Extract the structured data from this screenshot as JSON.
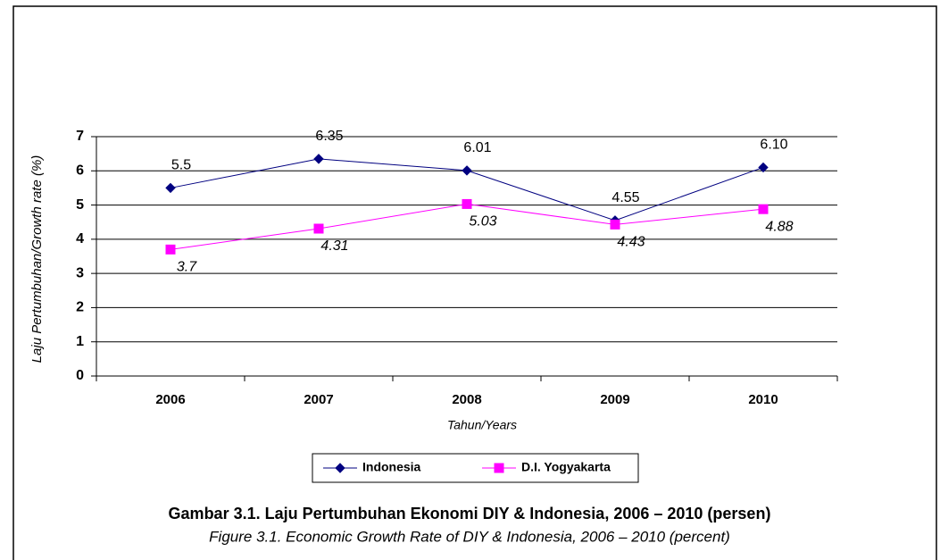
{
  "chart_data": {
    "type": "line",
    "title": "Gambar 3.1. Laju Pertumbuhan Ekonomi DIY & Indonesia, 2006 – 2010 (persen)",
    "subtitle": "Figure 3.1. Economic Growth Rate of DIY & Indonesia, 2006 – 2010 (percent)",
    "x_label": "Tahun/Years",
    "y_label": "Laju Pertumbuhan/Growth rate (%)",
    "categories": [
      "2006",
      "2007",
      "2008",
      "2009",
      "2010"
    ],
    "series": [
      {
        "name": "Indonesia",
        "color": "#000080",
        "marker": "diamond",
        "values": [
          5.5,
          6.35,
          6.01,
          4.55,
          6.1
        ],
        "value_labels": [
          "5.5",
          "6.35",
          "6.01",
          "4.55",
          "6.10"
        ]
      },
      {
        "name": "D.I. Yogyakarta",
        "color": "#ff00ff",
        "marker": "square",
        "values": [
          3.7,
          4.31,
          5.03,
          4.43,
          4.88
        ],
        "value_labels": [
          "3.7",
          "4.31",
          "5.03",
          "4.43",
          "4.88"
        ]
      }
    ],
    "ylim": [
      0,
      7
    ],
    "yticks": [
      0,
      1,
      2,
      3,
      4,
      5,
      6,
      7
    ],
    "grid": true,
    "legend": "bottom"
  }
}
